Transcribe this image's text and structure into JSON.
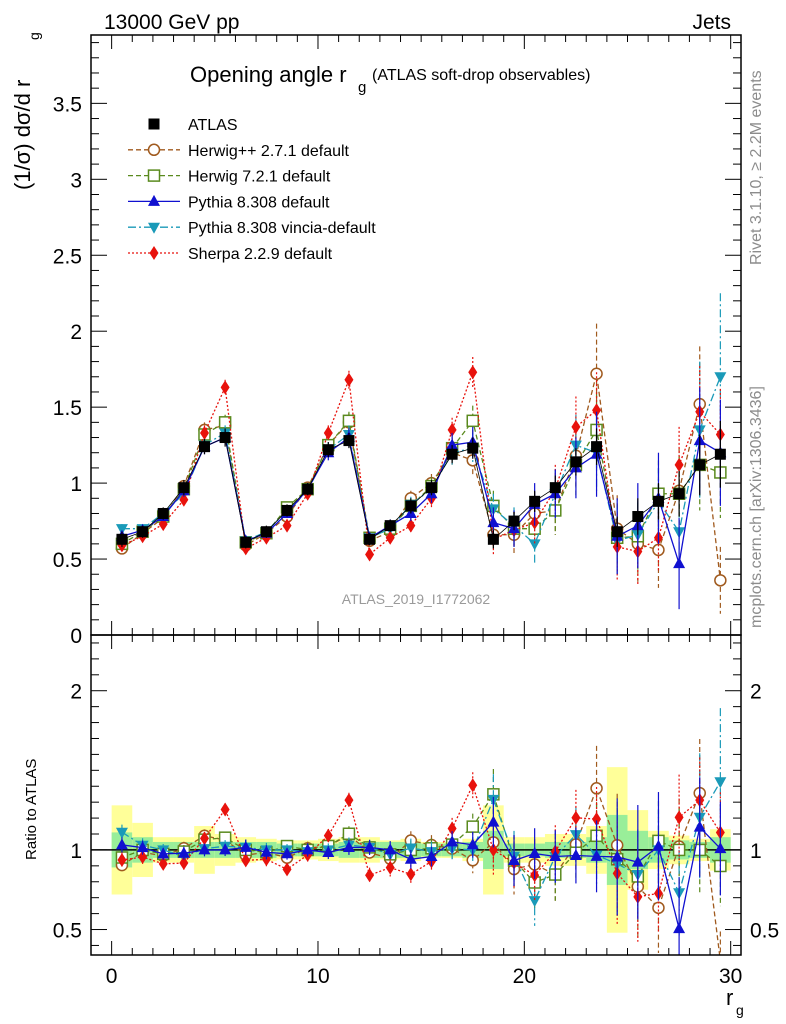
{
  "header": {
    "left": "13000 GeV pp",
    "right": "Jets",
    "side_top": "Rivet 3.1.10, ≥ 2.2M events",
    "side_bottom": "mcplots.cern.ch [arXiv:1306.3436]",
    "analysis": "ATLAS_2019_I1772062"
  },
  "chart_data": [
    {
      "type": "line",
      "title": "Opening angle r",
      "title_sub": "g",
      "title_suffix": "(ATLAS soft-drop observables)",
      "ylabel": "(1/σ) dσ/d r",
      "ylabel_sub": "g",
      "xlabel": "r",
      "xlabel_sub": "g",
      "xlim": [
        -1,
        30.5
      ],
      "ylim": [
        0,
        3.95
      ],
      "x_ticks": [
        "0",
        "10",
        "20",
        "30"
      ],
      "y_ticks": [
        "0",
        "0.5",
        "1",
        "1.5",
        "2",
        "2.5",
        "3",
        "3.5"
      ],
      "legend_position": "top-left",
      "x": [
        0.5,
        1.5,
        2.5,
        3.5,
        4.5,
        5.5,
        6.5,
        7.5,
        8.5,
        9.5,
        10.5,
        11.5,
        12.5,
        13.5,
        14.5,
        15.5,
        16.5,
        17.5,
        18.5,
        19.5,
        20.5,
        21.5,
        22.5,
        23.5,
        24.5,
        25.5,
        26.5,
        27.5,
        28.5,
        29.5
      ],
      "series": [
        {
          "name": "ATLAS",
          "color": "#000000",
          "marker": "square",
          "values": [
            0.63,
            0.68,
            0.8,
            0.97,
            1.24,
            1.3,
            0.61,
            0.68,
            0.82,
            0.96,
            1.22,
            1.28,
            0.63,
            0.72,
            0.85,
            0.97,
            1.19,
            1.23,
            0.63,
            0.75,
            0.88,
            0.97,
            1.14,
            1.24,
            0.68,
            0.78,
            0.88,
            0.93,
            1.12,
            1.19
          ],
          "errors": [
            0.05,
            0.04,
            0.04,
            0.05,
            0.05,
            0.06,
            0.04,
            0.04,
            0.04,
            0.04,
            0.05,
            0.05,
            0.04,
            0.04,
            0.05,
            0.05,
            0.06,
            0.07,
            0.06,
            0.06,
            0.07,
            0.08,
            0.09,
            0.12,
            0.1,
            0.12,
            0.12,
            0.15,
            0.2,
            0.22
          ]
        },
        {
          "name": "Herwig++ 2.7.1 default",
          "color": "#a05a1e",
          "marker": "circle",
          "values": [
            0.57,
            0.67,
            0.77,
            0.98,
            1.35,
            1.38,
            0.59,
            0.67,
            0.78,
            0.97,
            1.25,
            1.4,
            0.62,
            0.68,
            0.9,
            1.0,
            1.2,
            1.15,
            0.66,
            0.66,
            0.8,
            0.82,
            1.18,
            1.72,
            0.7,
            0.6,
            0.56,
            0.95,
            1.52,
            0.36
          ],
          "errors": [
            0.03,
            0.03,
            0.03,
            0.04,
            0.05,
            0.05,
            0.03,
            0.03,
            0.03,
            0.04,
            0.05,
            0.06,
            0.03,
            0.04,
            0.05,
            0.06,
            0.08,
            0.1,
            0.1,
            0.12,
            0.14,
            0.16,
            0.2,
            0.33,
            0.22,
            0.25,
            0.25,
            0.28,
            0.38,
            0.22
          ]
        },
        {
          "name": "Herwig 7.2.1 default",
          "color": "#5a8a1e",
          "marker": "square-open",
          "values": [
            0.6,
            0.68,
            0.78,
            0.96,
            1.32,
            1.4,
            0.61,
            0.67,
            0.84,
            0.96,
            1.25,
            1.41,
            0.64,
            0.7,
            0.85,
            0.98,
            1.23,
            1.41,
            0.85,
            0.7,
            0.7,
            0.82,
            1.12,
            1.35,
            0.64,
            0.65,
            0.93,
            0.93,
            1.12,
            1.07
          ],
          "errors": [
            0.03,
            0.03,
            0.03,
            0.04,
            0.05,
            0.05,
            0.03,
            0.03,
            0.03,
            0.04,
            0.05,
            0.06,
            0.03,
            0.04,
            0.05,
            0.06,
            0.08,
            0.1,
            0.1,
            0.12,
            0.14,
            0.16,
            0.2,
            0.25,
            0.22,
            0.22,
            0.22,
            0.25,
            0.3,
            0.3
          ]
        },
        {
          "name": "Pythia 8.308 default",
          "color": "#1010d0",
          "marker": "triangle-up",
          "values": [
            0.65,
            0.69,
            0.78,
            0.95,
            1.24,
            1.3,
            0.62,
            0.67,
            0.8,
            0.96,
            1.2,
            1.3,
            0.64,
            0.72,
            0.8,
            0.93,
            1.25,
            1.27,
            0.74,
            0.7,
            0.86,
            0.93,
            1.1,
            1.19,
            0.65,
            0.72,
            0.9,
            0.47,
            1.28,
            1.2
          ],
          "errors": [
            0.03,
            0.03,
            0.03,
            0.04,
            0.05,
            0.05,
            0.03,
            0.03,
            0.03,
            0.04,
            0.05,
            0.06,
            0.03,
            0.04,
            0.05,
            0.06,
            0.08,
            0.1,
            0.1,
            0.12,
            0.14,
            0.16,
            0.2,
            0.28,
            0.25,
            0.28,
            0.3,
            0.3,
            0.35,
            0.35
          ]
        },
        {
          "name": "Pythia 8.308 vincia-default",
          "color": "#1a9ab8",
          "marker": "triangle-down",
          "values": [
            0.7,
            0.7,
            0.8,
            0.93,
            1.25,
            1.33,
            0.62,
            0.68,
            0.82,
            0.95,
            1.22,
            1.32,
            0.64,
            0.7,
            0.86,
            0.96,
            1.2,
            1.23,
            0.83,
            0.72,
            0.6,
            0.93,
            1.25,
            1.2,
            0.62,
            0.66,
            0.88,
            0.68,
            1.35,
            1.7
          ],
          "errors": [
            0.03,
            0.03,
            0.03,
            0.04,
            0.05,
            0.05,
            0.03,
            0.03,
            0.03,
            0.04,
            0.05,
            0.06,
            0.03,
            0.04,
            0.05,
            0.06,
            0.08,
            0.1,
            0.1,
            0.12,
            0.14,
            0.16,
            0.2,
            0.25,
            0.22,
            0.22,
            0.22,
            0.25,
            0.45,
            0.55
          ]
        },
        {
          "name": "Sherpa 2.2.9 default",
          "color": "#e8120c",
          "marker": "diamond",
          "values": [
            0.59,
            0.65,
            0.73,
            0.89,
            1.33,
            1.63,
            0.57,
            0.64,
            0.72,
            0.93,
            1.33,
            1.68,
            0.53,
            0.64,
            0.72,
            0.9,
            1.35,
            1.73,
            0.63,
            0.69,
            0.74,
            0.96,
            1.37,
            1.48,
            0.58,
            0.55,
            0.64,
            1.12,
            1.47,
            1.32
          ],
          "errors": [
            0.03,
            0.03,
            0.03,
            0.04,
            0.05,
            0.05,
            0.03,
            0.03,
            0.03,
            0.04,
            0.05,
            0.06,
            0.03,
            0.04,
            0.05,
            0.06,
            0.08,
            0.1,
            0.1,
            0.12,
            0.14,
            0.16,
            0.2,
            0.25,
            0.22,
            0.22,
            0.22,
            0.25,
            0.3,
            0.3
          ]
        }
      ]
    },
    {
      "type": "line",
      "ylabel": "Ratio to ATLAS",
      "ylim": [
        0.34,
        2.35
      ],
      "y_ticks": [
        "0.5",
        "1",
        "2"
      ],
      "band_stat": [
        0.11,
        0.08,
        0.05,
        0.05,
        0.05,
        0.05,
        0.05,
        0.05,
        0.04,
        0.04,
        0.04,
        0.05,
        0.05,
        0.05,
        0.05,
        0.04,
        0.04,
        0.05,
        0.12,
        0.04,
        0.04,
        0.05,
        0.05,
        0.08,
        0.22,
        0.12,
        0.08,
        0.06,
        0.05,
        0.08
      ],
      "band_total": [
        0.28,
        0.17,
        0.08,
        0.08,
        0.15,
        0.1,
        0.08,
        0.07,
        0.06,
        0.06,
        0.07,
        0.08,
        0.08,
        0.06,
        0.07,
        0.05,
        0.05,
        0.07,
        0.28,
        0.08,
        0.08,
        0.1,
        0.1,
        0.15,
        0.52,
        0.25,
        0.12,
        0.09,
        0.07,
        0.13
      ]
    }
  ]
}
